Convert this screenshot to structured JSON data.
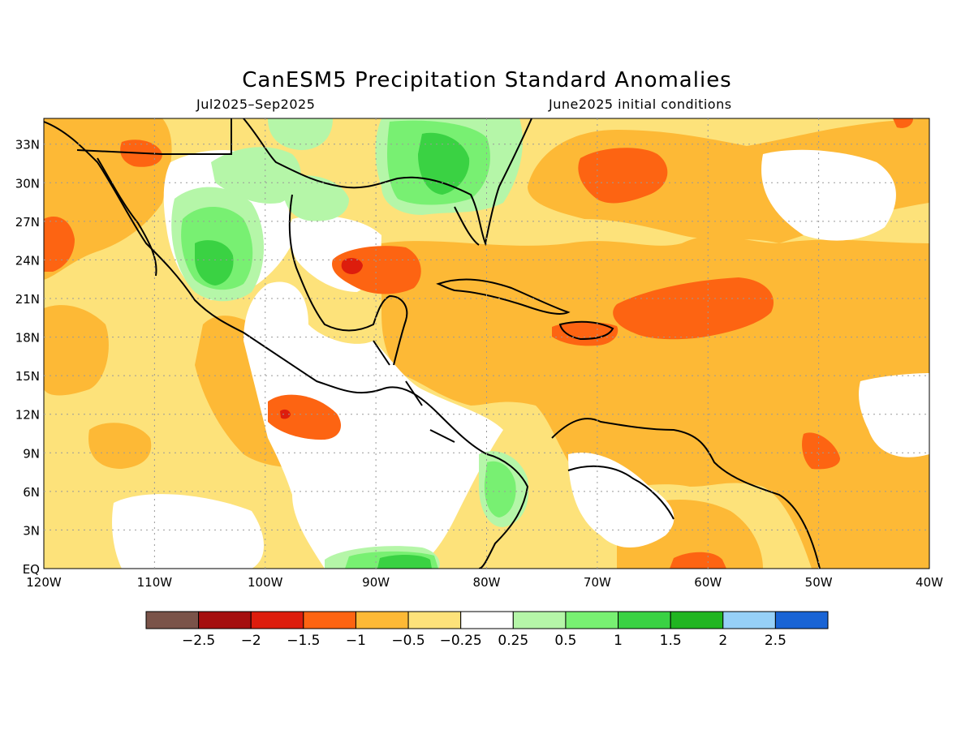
{
  "title": "CanESM5 Precipitation Standard Anomalies",
  "period": "Jul2025–Sep2025",
  "init": "June2025 initial conditions",
  "map": {
    "lat_labels": [
      "EQ",
      "3N",
      "6N",
      "9N",
      "12N",
      "15N",
      "18N",
      "21N",
      "24N",
      "27N",
      "30N",
      "33N"
    ],
    "lon_labels": [
      "120W",
      "110W",
      "100W",
      "90W",
      "80W",
      "70W",
      "60W",
      "50W",
      "40W"
    ],
    "lat_range": [
      0,
      35
    ],
    "lon_range": [
      -120,
      -40
    ]
  },
  "legend": {
    "colors": [
      "#7a5349",
      "#a50f0f",
      "#dd1d0d",
      "#fd6412",
      "#fdb936",
      "#fde27a",
      "#ffffff",
      "#b5f6a8",
      "#78f072",
      "#3ad243",
      "#21b521",
      "#96d0f7",
      "#1964d5"
    ],
    "labels": [
      "−2.5",
      "−2",
      "−1.5",
      "−1",
      "−0.5",
      "−0.25",
      "0.25",
      "0.5",
      "1",
      "1.5",
      "2",
      "2.5"
    ]
  }
}
